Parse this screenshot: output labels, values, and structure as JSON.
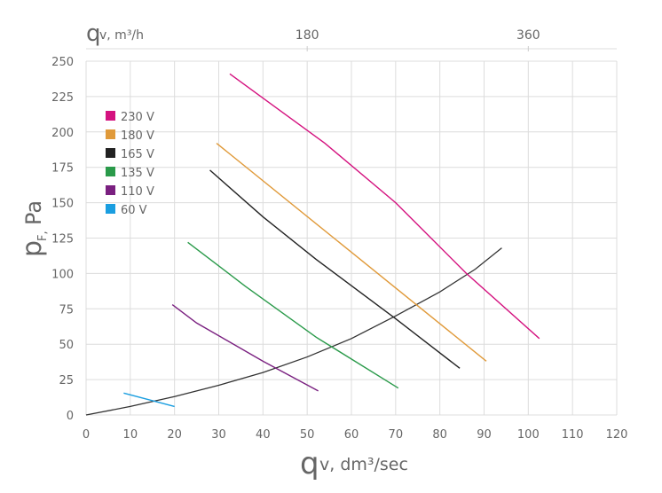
{
  "chart_data": {
    "type": "line",
    "title": "",
    "xlabel": {
      "main": "q",
      "sub": "v, dm³/sec"
    },
    "x2label": {
      "main": "q",
      "sub": "v, m³/h"
    },
    "ylabel": {
      "main": "p",
      "sub": "F,",
      "unit": "Pa"
    },
    "xlim": [
      0,
      120
    ],
    "ylim": [
      0,
      250
    ],
    "xticks": [
      "0",
      "10",
      "20",
      "30",
      "40",
      "50",
      "60",
      "70",
      "80",
      "90",
      "100",
      "110",
      "120"
    ],
    "yticks": [
      "0",
      "25",
      "50",
      "75",
      "100",
      "125",
      "150",
      "175",
      "200",
      "225",
      "250"
    ],
    "x2ticks": [
      {
        "label": "180",
        "x": 50
      },
      {
        "label": "360",
        "x": 100
      }
    ],
    "grid": true,
    "legend_position": "top-left",
    "series": [
      {
        "name": "230 V",
        "color": "#d4127f",
        "points": [
          [
            32.5,
            241
          ],
          [
            54,
            192
          ],
          [
            70,
            150
          ],
          [
            86,
            100
          ],
          [
            102.5,
            54
          ]
        ]
      },
      {
        "name": "180 V",
        "color": "#e09a3a",
        "points": [
          [
            29.5,
            192
          ],
          [
            60,
            115
          ],
          [
            90.5,
            38
          ]
        ]
      },
      {
        "name": "165 V",
        "color": "#222222",
        "points": [
          [
            28,
            173
          ],
          [
            40,
            140
          ],
          [
            52,
            110
          ],
          [
            70,
            68
          ],
          [
            84.5,
            33
          ]
        ]
      },
      {
        "name": "135 V",
        "color": "#2a9a4a",
        "points": [
          [
            23,
            122
          ],
          [
            36,
            91
          ],
          [
            52,
            55
          ],
          [
            70.6,
            19
          ]
        ]
      },
      {
        "name": "110 V",
        "color": "#7a2080",
        "points": [
          [
            19.5,
            78
          ],
          [
            25,
            65
          ],
          [
            40,
            38
          ],
          [
            52.5,
            17
          ]
        ]
      },
      {
        "name": "60 V",
        "color": "#1a9ee0",
        "points": [
          [
            8.5,
            15.5
          ],
          [
            20,
            6
          ]
        ]
      }
    ],
    "system_curve": {
      "color": "#333333",
      "points": [
        [
          0,
          0
        ],
        [
          10,
          6
        ],
        [
          20,
          13
        ],
        [
          30,
          21
        ],
        [
          40,
          30
        ],
        [
          50,
          41
        ],
        [
          60,
          54
        ],
        [
          70,
          70
        ],
        [
          80,
          87
        ],
        [
          88,
          103
        ],
        [
          94,
          118
        ]
      ]
    }
  }
}
